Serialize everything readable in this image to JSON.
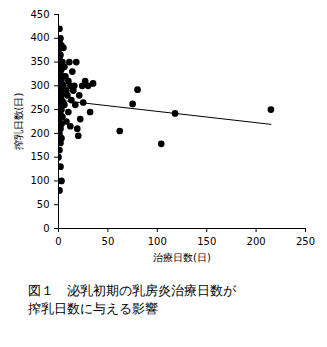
{
  "chart_data": {
    "type": "scatter",
    "title": "図１　泌乳初期の乳房炎治療日数が\n搾乳日数に与える影響",
    "x_label": "治療日数(日)",
    "y_label": "搾乳日数(日)",
    "xlim": [
      0,
      250
    ],
    "ylim": [
      0,
      450
    ],
    "xticks": [
      0,
      50,
      100,
      150,
      200,
      250
    ],
    "yticks": [
      0,
      50,
      100,
      150,
      200,
      250,
      300,
      350,
      400,
      450
    ],
    "color": "#000000",
    "marker": "circle",
    "x": [
      1,
      2,
      1,
      3,
      0,
      2,
      1,
      4,
      2,
      0,
      3,
      1,
      2,
      4,
      0,
      1,
      3,
      2,
      1,
      4,
      0,
      2,
      3,
      1,
      2,
      0,
      4,
      1,
      3,
      2,
      0,
      1,
      2,
      4,
      3,
      1,
      0,
      2,
      3,
      1,
      2,
      4,
      1,
      0,
      3,
      2,
      1,
      3,
      2,
      1,
      0,
      2,
      3,
      1,
      5,
      6,
      5,
      7,
      8,
      6,
      9,
      10,
      10,
      11,
      12,
      13,
      14,
      15,
      8,
      12,
      16,
      17,
      18,
      19,
      20,
      22,
      21,
      24,
      25,
      27,
      30,
      32,
      35,
      62,
      75,
      80,
      104,
      118,
      215
    ],
    "values": [
      420,
      400,
      395,
      385,
      375,
      365,
      360,
      350,
      345,
      340,
      335,
      330,
      325,
      320,
      318,
      315,
      312,
      310,
      305,
      302,
      300,
      298,
      295,
      292,
      290,
      288,
      285,
      282,
      280,
      278,
      275,
      272,
      270,
      268,
      265,
      262,
      260,
      255,
      250,
      245,
      240,
      235,
      230,
      225,
      220,
      210,
      200,
      190,
      180,
      165,
      150,
      130,
      100,
      80,
      380,
      340,
      300,
      320,
      290,
      260,
      280,
      310,
      245,
      350,
      300,
      270,
      330,
      290,
      225,
      215,
      300,
      260,
      350,
      210,
      195,
      230,
      280,
      300,
      265,
      310,
      300,
      245,
      305,
      205,
      262,
      292,
      178,
      242,
      250
    ],
    "trendline": {
      "x": [
        0,
        215
      ],
      "values": [
        270,
        219
      ],
      "line_style": "solid"
    }
  }
}
